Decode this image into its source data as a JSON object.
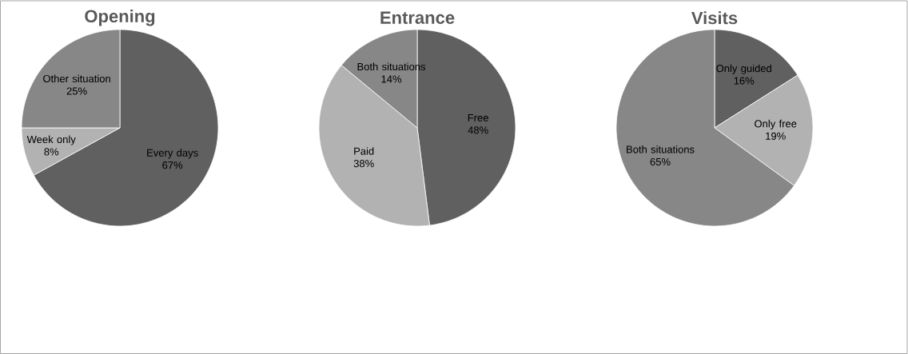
{
  "chart_data": [
    {
      "type": "pie",
      "title": "Opening",
      "categories": [
        "Every days",
        "Week only",
        "Other situation"
      ],
      "values": [
        67,
        8,
        25
      ],
      "value_labels": [
        "67%",
        "8%",
        "25%"
      ],
      "colors": [
        "#606060",
        "#b2b2b2",
        "#878787"
      ]
    },
    {
      "type": "pie",
      "title": "Entrance",
      "categories": [
        "Free",
        "Paid",
        "Both situations"
      ],
      "values": [
        48,
        38,
        14
      ],
      "value_labels": [
        "48%",
        "38%",
        "14%"
      ],
      "colors": [
        "#606060",
        "#b2b2b2",
        "#878787"
      ]
    },
    {
      "type": "pie",
      "title": "Visits",
      "categories": [
        "Only guided",
        "Only free",
        "Both situations"
      ],
      "values": [
        16,
        19,
        65
      ],
      "value_labels": [
        "16%",
        "19%",
        "65%"
      ],
      "colors": [
        "#606060",
        "#b2b2b2",
        "#878787"
      ]
    }
  ]
}
